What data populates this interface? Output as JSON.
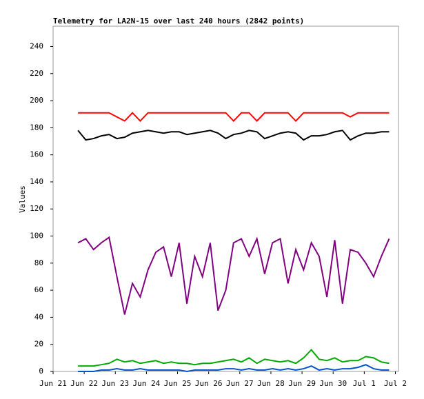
{
  "chart_data": {
    "type": "line",
    "title": "Telemetry for LA2N-15 over last 240 hours (2842 points)",
    "y_label": "Values",
    "xlim": [
      0,
      11.1
    ],
    "xticks": [
      {
        "value": 0,
        "label": "Jun 21"
      },
      {
        "value": 1,
        "label": "Jun 22"
      },
      {
        "value": 2,
        "label": "Jun 23"
      },
      {
        "value": 3,
        "label": "Jun 24"
      },
      {
        "value": 4,
        "label": "Jun 25"
      },
      {
        "value": 5,
        "label": "Jun 26"
      },
      {
        "value": 6,
        "label": "Jun 27"
      },
      {
        "value": 7,
        "label": "Jun 28"
      },
      {
        "value": 8,
        "label": "Jun 29"
      },
      {
        "value": 9,
        "label": "Jun 30"
      },
      {
        "value": 10,
        "label": "Jul 1"
      },
      {
        "value": 11,
        "label": "Jul 2"
      }
    ],
    "ylim": [
      0,
      255
    ],
    "yticks": [
      0,
      20,
      40,
      60,
      80,
      100,
      120,
      140,
      160,
      180,
      200,
      220,
      240
    ],
    "x": [
      0.8,
      1.05,
      1.3,
      1.55,
      1.8,
      2.05,
      2.3,
      2.55,
      2.8,
      3.05,
      3.3,
      3.55,
      3.8,
      4.05,
      4.3,
      4.55,
      4.8,
      5.05,
      5.3,
      5.55,
      5.8,
      6.05,
      6.3,
      6.55,
      6.8,
      7.05,
      7.3,
      7.55,
      7.8,
      8.05,
      8.3,
      8.55,
      8.8,
      9.05,
      9.3,
      9.55,
      9.8,
      10.05,
      10.3,
      10.55,
      10.8
    ],
    "series": [
      {
        "color": "#ff0000",
        "values": [
          191,
          191,
          191,
          191,
          191,
          188,
          185,
          191,
          185,
          191,
          191,
          191,
          191,
          191,
          191,
          191,
          191,
          191,
          191,
          191,
          185,
          191,
          191,
          185,
          191,
          191,
          191,
          191,
          185,
          191,
          191,
          191,
          191,
          191,
          191,
          188,
          191,
          191,
          191,
          191,
          191
        ]
      },
      {
        "color": "#000000",
        "values": [
          178,
          171,
          172,
          174,
          175,
          172,
          173,
          176,
          177,
          178,
          177,
          176,
          177,
          177,
          175,
          176,
          177,
          178,
          176,
          172,
          175,
          176,
          178,
          177,
          172,
          174,
          176,
          177,
          176,
          171,
          174,
          174,
          175,
          177,
          178,
          171,
          174,
          176,
          176,
          177,
          177
        ]
      },
      {
        "color": "#800080",
        "values": [
          95,
          98,
          90,
          95,
          99,
          70,
          42,
          65,
          55,
          75,
          88,
          92,
          70,
          95,
          50,
          85,
          70,
          95,
          45,
          60,
          95,
          98,
          85,
          98,
          72,
          95,
          98,
          65,
          90,
          75,
          95,
          85,
          55,
          97,
          50,
          90,
          88,
          80,
          70,
          85,
          98
        ]
      },
      {
        "color": "#00aa00",
        "values": [
          4,
          4,
          4,
          5,
          6,
          9,
          7,
          8,
          6,
          7,
          8,
          6,
          7,
          6,
          6,
          5,
          6,
          6,
          7,
          8,
          9,
          7,
          10,
          6,
          9,
          8,
          7,
          8,
          6,
          10,
          16,
          9,
          8,
          10,
          7,
          8,
          8,
          11,
          10,
          7,
          6
        ]
      },
      {
        "color": "#0055cc",
        "values": [
          0,
          0,
          0,
          1,
          1,
          2,
          1,
          1,
          2,
          1,
          1,
          1,
          1,
          1,
          0,
          1,
          1,
          1,
          1,
          2,
          2,
          1,
          2,
          1,
          1,
          2,
          1,
          2,
          1,
          2,
          4,
          1,
          2,
          1,
          2,
          2,
          3,
          5,
          2,
          1,
          1
        ]
      }
    ]
  }
}
